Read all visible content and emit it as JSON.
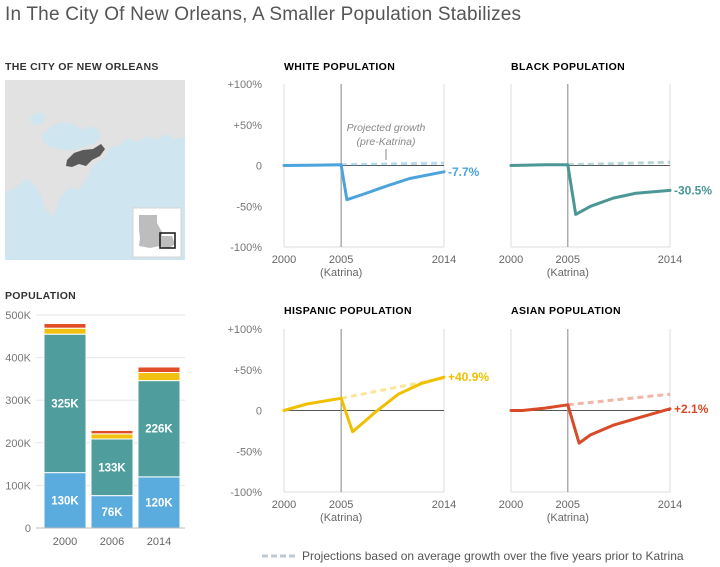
{
  "title": "In The City Of New Orleans, A Smaller Population Stabilizes",
  "map": {
    "label": "THE CITY OF NEW ORLEANS",
    "colors": {
      "water": "#cfe5ef",
      "land": "#e2e2e2",
      "city": "#5a5a5a",
      "state": "#ffffff",
      "border": "#ffffff"
    }
  },
  "footnote": "Projections based on average growth over the five years prior to Katrina",
  "chart_data": [
    {
      "type": "bar",
      "title": "POPULATION",
      "categories": [
        "2000",
        "2006",
        "2014"
      ],
      "ylim": [
        0,
        500000
      ],
      "yticks": [
        0,
        100000,
        200000,
        300000,
        400000,
        500000
      ],
      "ytick_labels": [
        "0",
        "100K",
        "200K",
        "300K",
        "400K",
        "500K"
      ],
      "stacked": true,
      "series": [
        {
          "name": "White",
          "color": "#5aabde",
          "values": [
            130000,
            76000,
            120000
          ],
          "labels": [
            "130K",
            "76K",
            "120K"
          ]
        },
        {
          "name": "Black",
          "color": "#4f9e9d",
          "values": [
            325000,
            133000,
            226000
          ],
          "labels": [
            "325K",
            "133K",
            "226K"
          ]
        },
        {
          "name": "Hispanic",
          "color": "#f1c112",
          "values": [
            14000,
            12000,
            19000
          ]
        },
        {
          "name": "Asian",
          "color": "#e04e28",
          "values": [
            11000,
            8000,
            13000
          ]
        }
      ]
    },
    {
      "type": "line",
      "title": "WHITE POPULATION",
      "color": "#4da3dc",
      "xlim": [
        2000,
        2014
      ],
      "ylim": [
        -100,
        100
      ],
      "katrina_year": 2005,
      "xticks": [
        "2000",
        "2005",
        "2014"
      ],
      "katrina_label": "(Katrina)",
      "yticks": [
        "+100%",
        "+50%",
        "0",
        "-50%",
        "-100%"
      ],
      "actual": [
        [
          2000,
          0
        ],
        [
          2003,
          0.5
        ],
        [
          2005,
          1
        ],
        [
          2005.5,
          -42
        ],
        [
          2007,
          -35
        ],
        [
          2009,
          -25
        ],
        [
          2011,
          -16
        ],
        [
          2014,
          -7.7
        ]
      ],
      "projected": [
        [
          2005,
          1
        ],
        [
          2014,
          3
        ]
      ],
      "end_label": "-7.7%",
      "annotation": [
        "Projected growth",
        "(pre-Katrina)"
      ]
    },
    {
      "type": "line",
      "title": "BLACK POPULATION",
      "color": "#4a9796",
      "xlim": [
        2000,
        2014
      ],
      "ylim": [
        -100,
        100
      ],
      "katrina_year": 2005,
      "xticks": [
        "2000",
        "2005",
        "2014"
      ],
      "katrina_label": "(Katrina)",
      "yticks": [],
      "actual": [
        [
          2000,
          0
        ],
        [
          2003,
          1
        ],
        [
          2005,
          1
        ],
        [
          2005.7,
          -60
        ],
        [
          2007,
          -50
        ],
        [
          2009,
          -40
        ],
        [
          2011,
          -34
        ],
        [
          2014,
          -30.5
        ]
      ],
      "projected": [
        [
          2005,
          1
        ],
        [
          2014,
          4
        ]
      ],
      "end_label": "-30.5%"
    },
    {
      "type": "line",
      "title": "HISPANIC POPULATION",
      "color": "#f0c000",
      "xlim": [
        2000,
        2014
      ],
      "ylim": [
        -100,
        100
      ],
      "katrina_year": 2005,
      "xticks": [
        "2000",
        "2005",
        "2014"
      ],
      "katrina_label": "(Katrina)",
      "yticks": [
        "+100%",
        "+50%",
        "0",
        "-50%",
        "-100%"
      ],
      "actual": [
        [
          2000,
          0
        ],
        [
          2002,
          8
        ],
        [
          2005,
          15
        ],
        [
          2006,
          -26
        ],
        [
          2008,
          -2
        ],
        [
          2010,
          20
        ],
        [
          2012,
          33
        ],
        [
          2014,
          40.9
        ]
      ],
      "projected": [
        [
          2005,
          15
        ],
        [
          2014,
          40
        ]
      ],
      "end_label": "+40.9%"
    },
    {
      "type": "line",
      "title": "ASIAN POPULATION",
      "color": "#d94a27",
      "xlim": [
        2000,
        2014
      ],
      "ylim": [
        -100,
        100
      ],
      "katrina_year": 2005,
      "xticks": [
        "2000",
        "2005",
        "2014"
      ],
      "katrina_label": "(Katrina)",
      "yticks": [],
      "actual": [
        [
          2000,
          0
        ],
        [
          2001,
          0
        ],
        [
          2003,
          3
        ],
        [
          2005,
          7
        ],
        [
          2006,
          -40
        ],
        [
          2007,
          -30
        ],
        [
          2009,
          -18
        ],
        [
          2011,
          -10
        ],
        [
          2014,
          2.1
        ]
      ],
      "projected": [
        [
          2005,
          7
        ],
        [
          2014,
          20
        ]
      ],
      "end_label": "+2.1%"
    }
  ]
}
